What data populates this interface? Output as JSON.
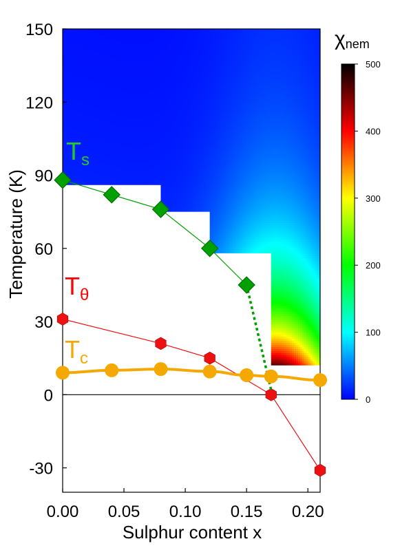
{
  "chart_data": {
    "type": "scatter",
    "xlabel": "Sulphur content x",
    "ylabel": "Temperature (K)",
    "xlim": [
      0.0,
      0.21
    ],
    "ylim": [
      -40,
      150
    ],
    "x_ticks": [
      "0.00",
      "0.05",
      "0.10",
      "0.15",
      "0.20"
    ],
    "y_ticks": [
      "-30",
      "0",
      "30",
      "60",
      "90",
      "120",
      "150"
    ],
    "grid": false,
    "heatmap": {
      "quantity": "χnem",
      "colorbar_label": "χ",
      "colorbar_subscript": "nem",
      "colorbar_ticks": [
        "0",
        "100",
        "200",
        "300",
        "400",
        "500"
      ],
      "colorbar_range": [
        0,
        500
      ],
      "colormap": [
        "#0000ff",
        "#00ffff",
        "#00ff00",
        "#ffff00",
        "#ff0000",
        "#000000"
      ],
      "description_regions": [
        {
          "x_from": 0.0,
          "x_to": 0.08,
          "t_min": 86
        },
        {
          "x_from": 0.08,
          "x_to": 0.12,
          "t_min": 75
        },
        {
          "x_from": 0.12,
          "x_to": 0.17,
          "t_min": 58
        },
        {
          "x_from": 0.17,
          "x_to": 0.21,
          "t_min": 12
        }
      ]
    },
    "series": [
      {
        "name": "Ts",
        "label_main": "T",
        "label_sub": "s",
        "marker": "diamond",
        "color": "#00a000",
        "label_color": "#22cc22",
        "x": [
          0.0,
          0.04,
          0.08,
          0.12,
          0.15
        ],
        "y": [
          88,
          82,
          76,
          60,
          45
        ],
        "extension": {
          "x": [
            0.15,
            0.17
          ],
          "y": [
            45,
            2
          ],
          "style": "dotted"
        }
      },
      {
        "name": "Tθ",
        "label_main": "T",
        "label_sub": "θ",
        "marker": "hexagon",
        "color": "#ee1111",
        "label_color": "#ff0000",
        "x": [
          0.0,
          0.08,
          0.12,
          0.17,
          0.21
        ],
        "y": [
          31,
          21,
          15,
          0,
          -31
        ]
      },
      {
        "name": "Tc",
        "label_main": "T",
        "label_sub": "c",
        "marker": "circle",
        "color": "#f5a800",
        "label_color": "#f5a800",
        "x": [
          0.0,
          0.04,
          0.08,
          0.12,
          0.15,
          0.17,
          0.21
        ],
        "y": [
          9,
          10,
          10.5,
          9.5,
          8,
          7.5,
          6
        ]
      }
    ]
  }
}
